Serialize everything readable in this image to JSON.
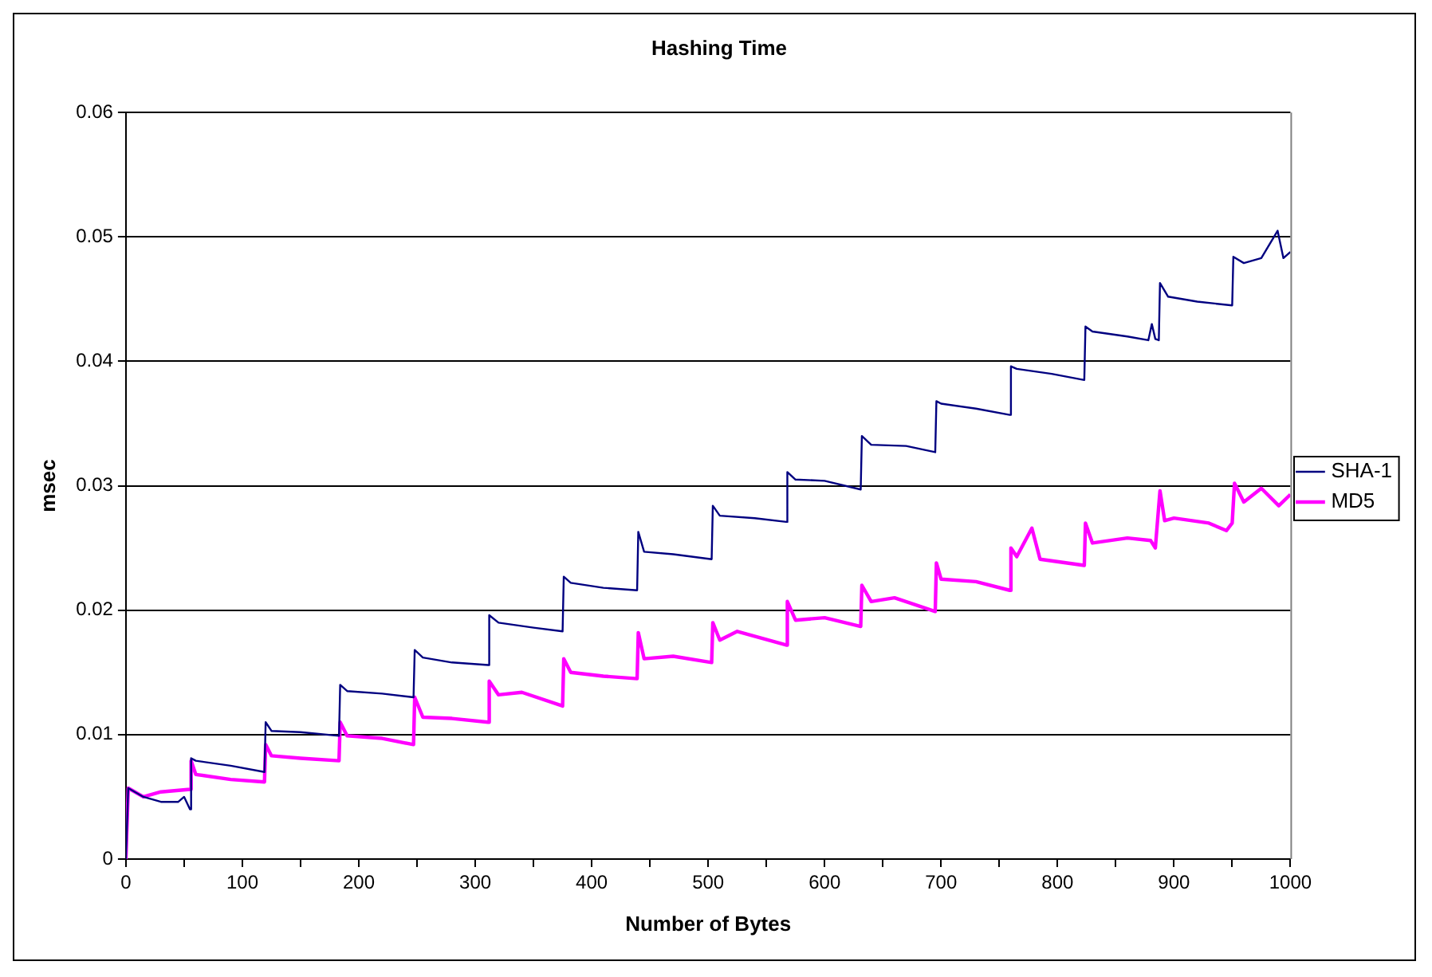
{
  "chart_data": {
    "type": "line",
    "title": "Hashing Time",
    "xlabel": "Number of Bytes",
    "ylabel": "msec",
    "xlim": [
      0,
      1000
    ],
    "xticks": [
      0,
      {
        "value": 50,
        "label": null
      },
      100,
      {
        "value": 150,
        "label": null
      },
      200,
      {
        "value": 250,
        "label": null
      },
      300,
      {
        "value": 350,
        "label": null
      },
      400,
      {
        "value": 450,
        "label": null
      },
      500,
      {
        "value": 550,
        "label": null
      },
      600,
      {
        "value": 650,
        "label": null
      },
      700,
      {
        "value": 750,
        "label": null
      },
      800,
      {
        "value": 850,
        "label": null
      },
      900,
      {
        "value": 950,
        "label": null
      },
      1000
    ],
    "ylim": [
      0,
      0.06
    ],
    "yticks": [
      0,
      0.01,
      0.02,
      0.03,
      0.04,
      0.05,
      0.06
    ],
    "grid": "y",
    "legend": "right",
    "marker": "none",
    "line_style": "solid",
    "series": [
      {
        "name": "SHA-1",
        "color": "#000080",
        "x": [
          0,
          2,
          15,
          30,
          45,
          50,
          55,
          56,
          60,
          90,
          119,
          120,
          125,
          150,
          183,
          184,
          190,
          220,
          247,
          248,
          255,
          280,
          311,
          312,
          320,
          350,
          375,
          376,
          382,
          410,
          439,
          440,
          445,
          470,
          503,
          504,
          510,
          540,
          567,
          568,
          575,
          600,
          631,
          632,
          640,
          670,
          695,
          696,
          700,
          730,
          759,
          760,
          765,
          795,
          823,
          824,
          830,
          860,
          878,
          881,
          884,
          887,
          888,
          895,
          920,
          950,
          951,
          960,
          975,
          989,
          994,
          1000
        ],
        "values": [
          0,
          0.0057,
          0.005,
          0.0046,
          0.0046,
          0.005,
          0.004,
          0.0081,
          0.0079,
          0.0075,
          0.007,
          0.011,
          0.0103,
          0.0102,
          0.0099,
          0.014,
          0.0135,
          0.0133,
          0.013,
          0.0168,
          0.0162,
          0.0158,
          0.0156,
          0.0196,
          0.019,
          0.0186,
          0.0183,
          0.0227,
          0.0222,
          0.0218,
          0.0216,
          0.0263,
          0.0247,
          0.0245,
          0.0241,
          0.0284,
          0.0276,
          0.0274,
          0.0271,
          0.0311,
          0.0305,
          0.0304,
          0.0297,
          0.034,
          0.0333,
          0.0332,
          0.0327,
          0.0368,
          0.0366,
          0.0362,
          0.0357,
          0.0396,
          0.0394,
          0.039,
          0.0385,
          0.0428,
          0.0424,
          0.042,
          0.0417,
          0.043,
          0.0418,
          0.0417,
          0.0463,
          0.0452,
          0.0448,
          0.0445,
          0.0484,
          0.0479,
          0.0483,
          0.0505,
          0.0483,
          0.0488
        ]
      },
      {
        "name": "MD5",
        "color": "#ff00ff",
        "x": [
          0,
          2,
          15,
          30,
          55,
          56,
          60,
          90,
          119,
          120,
          125,
          150,
          183,
          184,
          190,
          220,
          247,
          248,
          255,
          280,
          311,
          312,
          320,
          340,
          375,
          376,
          382,
          410,
          439,
          440,
          445,
          470,
          503,
          504,
          510,
          525,
          567,
          568,
          575,
          600,
          631,
          632,
          640,
          660,
          695,
          696,
          700,
          730,
          759,
          760,
          765,
          778,
          785,
          823,
          824,
          830,
          860,
          880,
          884,
          888,
          892,
          900,
          930,
          945,
          950,
          952,
          960,
          975,
          990,
          1000
        ],
        "values": [
          0,
          0.0057,
          0.005,
          0.0054,
          0.0056,
          0.0079,
          0.0068,
          0.0064,
          0.0062,
          0.0092,
          0.0083,
          0.0081,
          0.0079,
          0.011,
          0.0099,
          0.0097,
          0.0092,
          0.013,
          0.0114,
          0.0113,
          0.011,
          0.0143,
          0.0132,
          0.0134,
          0.0123,
          0.0161,
          0.015,
          0.0147,
          0.0145,
          0.0182,
          0.0161,
          0.0163,
          0.0158,
          0.019,
          0.0176,
          0.0183,
          0.0172,
          0.0207,
          0.0192,
          0.0194,
          0.0187,
          0.022,
          0.0207,
          0.021,
          0.0199,
          0.0238,
          0.0225,
          0.0223,
          0.0216,
          0.025,
          0.0243,
          0.0266,
          0.0241,
          0.0236,
          0.027,
          0.0254,
          0.0258,
          0.0256,
          0.025,
          0.0296,
          0.0272,
          0.0274,
          0.027,
          0.0264,
          0.027,
          0.0302,
          0.0287,
          0.0298,
          0.0284,
          0.0293
        ]
      }
    ]
  }
}
